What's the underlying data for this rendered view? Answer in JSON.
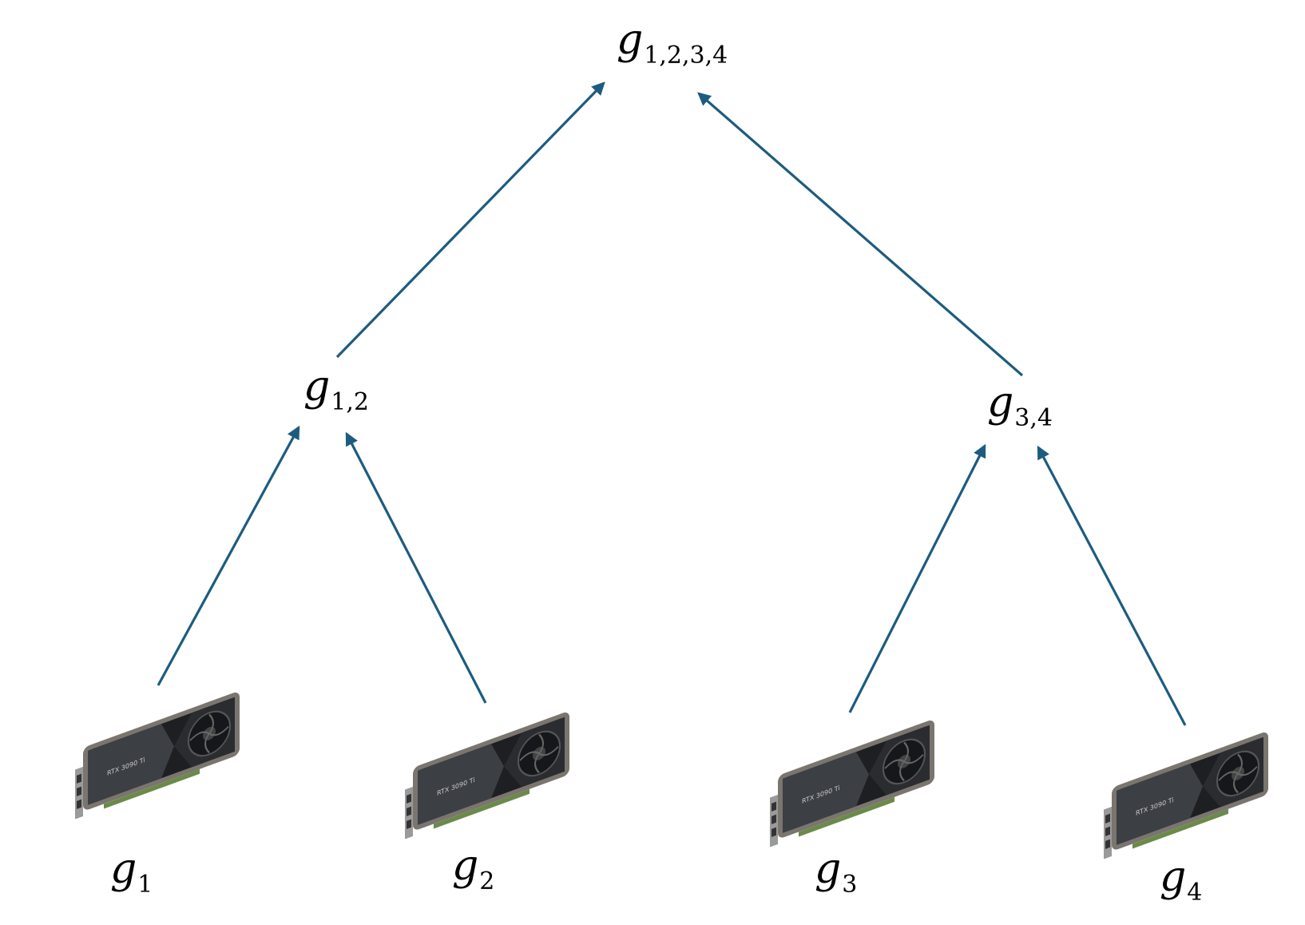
{
  "colors": {
    "arrow": "#1d5c7f",
    "gpu_dark": "#1d1f22",
    "gpu_mid": "#3c3f44",
    "gpu_frame": "#7a756e",
    "gpu_bracket": "#9a9a9a"
  },
  "nodes": {
    "root": {
      "symbol": "g",
      "subscript": "1,2,3,4"
    },
    "left_mid": {
      "symbol": "g",
      "subscript": "1,2"
    },
    "right_mid": {
      "symbol": "g",
      "subscript": "3,4"
    },
    "leaves": [
      {
        "symbol": "g",
        "subscript": "1",
        "gpu_text": "RTX 3090 Ti",
        "icon": "gpu-card-icon"
      },
      {
        "symbol": "g",
        "subscript": "2",
        "gpu_text": "RTX 3090 Ti",
        "icon": "gpu-card-icon"
      },
      {
        "symbol": "g",
        "subscript": "3",
        "gpu_text": "RTX 3090 Ti",
        "icon": "gpu-card-icon"
      },
      {
        "symbol": "g",
        "subscript": "4",
        "gpu_text": "RTX 3090 Ti",
        "icon": "gpu-card-icon"
      }
    ]
  },
  "edges": [
    {
      "from": "g1",
      "to": "g1,2"
    },
    {
      "from": "g2",
      "to": "g1,2"
    },
    {
      "from": "g3",
      "to": "g3,4"
    },
    {
      "from": "g4",
      "to": "g3,4"
    },
    {
      "from": "g1,2",
      "to": "g1,2,3,4"
    },
    {
      "from": "g3,4",
      "to": "g1,2,3,4"
    }
  ]
}
